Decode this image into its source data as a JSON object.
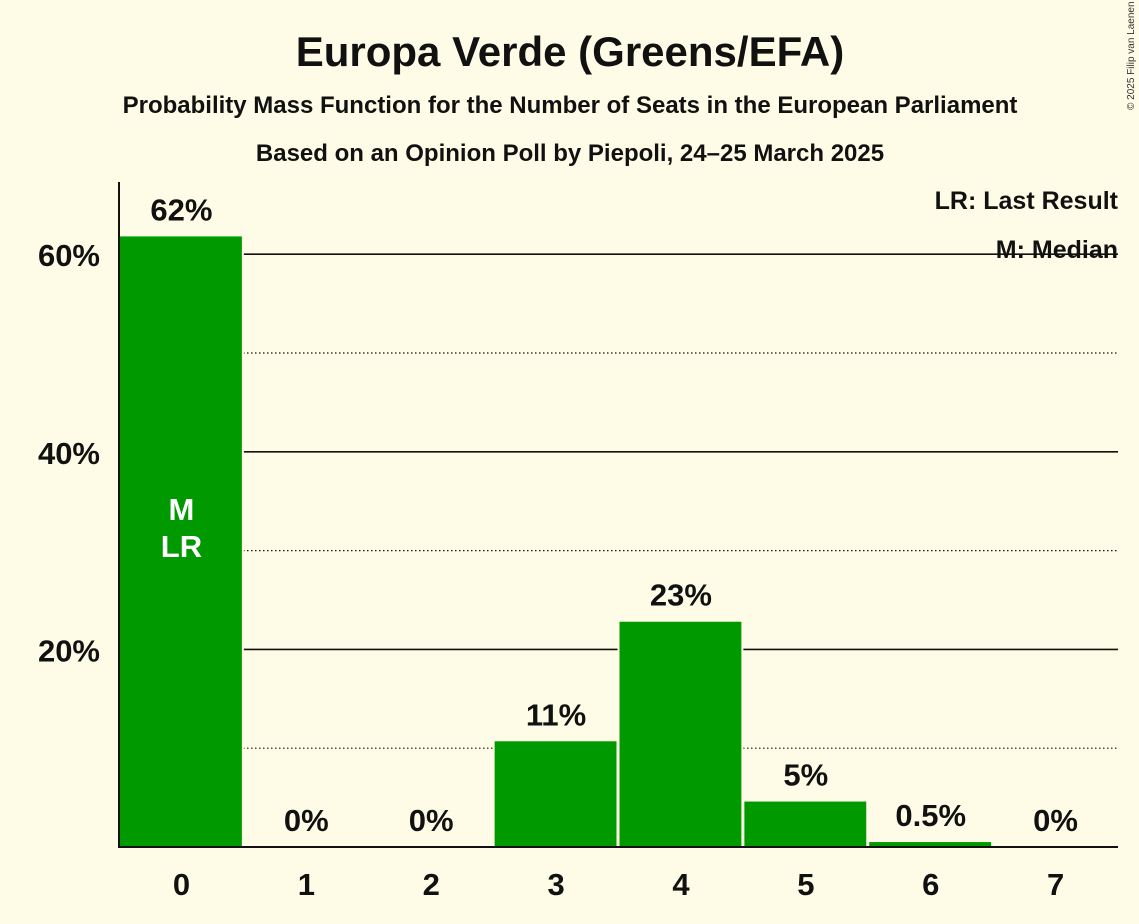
{
  "chart_data": {
    "type": "bar",
    "title": "Europa Verde (Greens/EFA)",
    "subtitle": "Probability Mass Function for the Number of Seats in the European Parliament",
    "subtitle2": "Based on an Opinion Poll by Piepoli, 24–25 March 2025",
    "categories": [
      "0",
      "1",
      "2",
      "3",
      "4",
      "5",
      "6",
      "7"
    ],
    "values": [
      61.8,
      0,
      0,
      10.7,
      22.8,
      4.6,
      0.5,
      0
    ],
    "value_labels": [
      "62%",
      "0%",
      "0%",
      "11%",
      "23%",
      "5%",
      "0.5%",
      "0%"
    ],
    "ylim": [
      0,
      67
    ],
    "yticks": [
      20,
      40,
      60
    ],
    "ytick_labels": [
      "20%",
      "40%",
      "60%"
    ],
    "minor_gridlines": [
      10,
      30,
      50
    ],
    "xlabel": "",
    "ylabel": "",
    "bar_color": "#009900",
    "in_bar_marks": {
      "category_index": 0,
      "lines": [
        "M",
        "LR"
      ]
    },
    "legend": {
      "lines": [
        "LR: Last Result",
        "M: Median"
      ],
      "placement": "top-right"
    },
    "copyright": "© 2025 Filip van Laenen"
  }
}
